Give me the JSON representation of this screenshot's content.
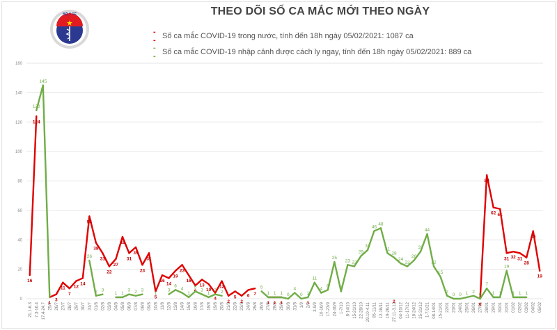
{
  "header": {
    "title": "THEO DÕI SỐ CA MẮC MỚI THEO NGÀY",
    "logo_text": "BỘ Y TẾ",
    "logo_subtext": "MINISTRY OF HEALTH"
  },
  "legend": {
    "domestic": "Số ca mắc COVID-19 trong nước, tính đến 18h ngày 05/02/2021: 1087 ca",
    "imported": "Số ca mắc COVID-19 nhập cảnh được cách ly ngay, tính đến 18h ngày 05/02/2021: 889 ca"
  },
  "colors": {
    "domestic": "#e00000",
    "imported": "#70ad47",
    "grid": "#e6e6e6"
  },
  "chart_data": {
    "type": "line",
    "title": "THEO DÕI SỐ CA MẮC MỚI THEO NGÀY",
    "xlabel": "",
    "ylabel": "",
    "ylim": [
      0,
      160
    ],
    "yticks": [
      0,
      20,
      40,
      60,
      80,
      100,
      120,
      140,
      160
    ],
    "grid": true,
    "legend_position": "top",
    "categories": [
      "21.1-6.3",
      "7.3-16.4",
      "17.4-24.7",
      "25/7",
      "26/7",
      "27/7",
      "28/7",
      "29/7",
      "30/7",
      "31/7",
      "01/8",
      "02/8",
      "03/8",
      "04/8",
      "05/8",
      "06/8",
      "07/8",
      "08/8",
      "09/8",
      "10/8",
      "11/8",
      "12/8",
      "13/8",
      "14/8",
      "15/8",
      "16/8",
      "17/8",
      "18/8",
      "19/8",
      "20/8",
      "21/8",
      "22/8",
      "23/8",
      "24/8",
      "25/8",
      "26/8",
      "27/8",
      "28/8",
      "29/8",
      "30/8",
      "31/8",
      "1/9",
      "2/9",
      "3-9/9",
      "10-16/9",
      "17-23/9",
      "24-30/9",
      "1-7/10",
      "8-14/10",
      "15-21/10",
      "22-28/10",
      "29.10-4.11",
      "05-11/11",
      "12-18/11",
      "19-26/11",
      "27.11-3.12",
      "04-10/12",
      "11-17/12",
      "18-24/12",
      "25-31/12",
      "1-7/1/21",
      "08-14/01",
      "15-21/01",
      "22/01",
      "23/01",
      "24/01",
      "25/01",
      "26/01",
      "27/01",
      "28/01",
      "29/01",
      "30/01",
      "31/01",
      "01/02",
      "02/02",
      "03/02",
      "04/02",
      "05/02"
    ],
    "series": [
      {
        "name": "Số ca mắc COVID-19 trong nước",
        "color": "#e00000",
        "values": [
          16,
          124,
          null,
          1,
          3,
          11,
          7,
          12,
          14,
          56,
          38,
          31,
          22,
          27,
          42,
          31,
          35,
          23,
          31,
          5,
          16,
          14,
          19,
          23,
          16,
          9,
          13,
          10,
          4,
          12,
          2,
          5,
          2,
          6,
          7,
          null,
          1,
          1,
          1,
          null,
          null,
          null,
          1,
          null,
          null,
          null,
          null,
          null,
          null,
          null,
          null,
          null,
          null,
          null,
          null,
          2,
          null,
          null,
          null,
          null,
          null,
          null,
          null,
          null,
          null,
          null,
          null,
          null,
          0,
          84,
          62,
          61,
          31,
          32,
          31,
          28,
          46,
          19
        ]
      },
      {
        "name": "Số ca mắc COVID-19 nhập cảnh được cách ly ngay",
        "color": "#70ad47",
        "values": [
          null,
          128,
          145,
          1,
          null,
          null,
          null,
          null,
          null,
          26,
          2,
          3,
          null,
          1,
          1,
          3,
          2,
          3,
          null,
          1,
          null,
          3,
          6,
          4,
          1,
          5,
          3,
          1,
          3,
          2,
          null,
          null,
          null,
          null,
          null,
          5,
          1,
          1,
          1,
          0,
          4,
          0,
          1,
          11,
          4,
          6,
          25,
          5,
          23,
          22,
          29,
          33,
          46,
          48,
          31,
          28,
          24,
          22,
          26,
          32,
          44,
          22,
          15,
          2,
          0,
          0,
          1,
          2,
          0,
          7,
          1,
          1,
          19,
          1,
          1,
          1,
          null,
          null
        ]
      }
    ]
  }
}
